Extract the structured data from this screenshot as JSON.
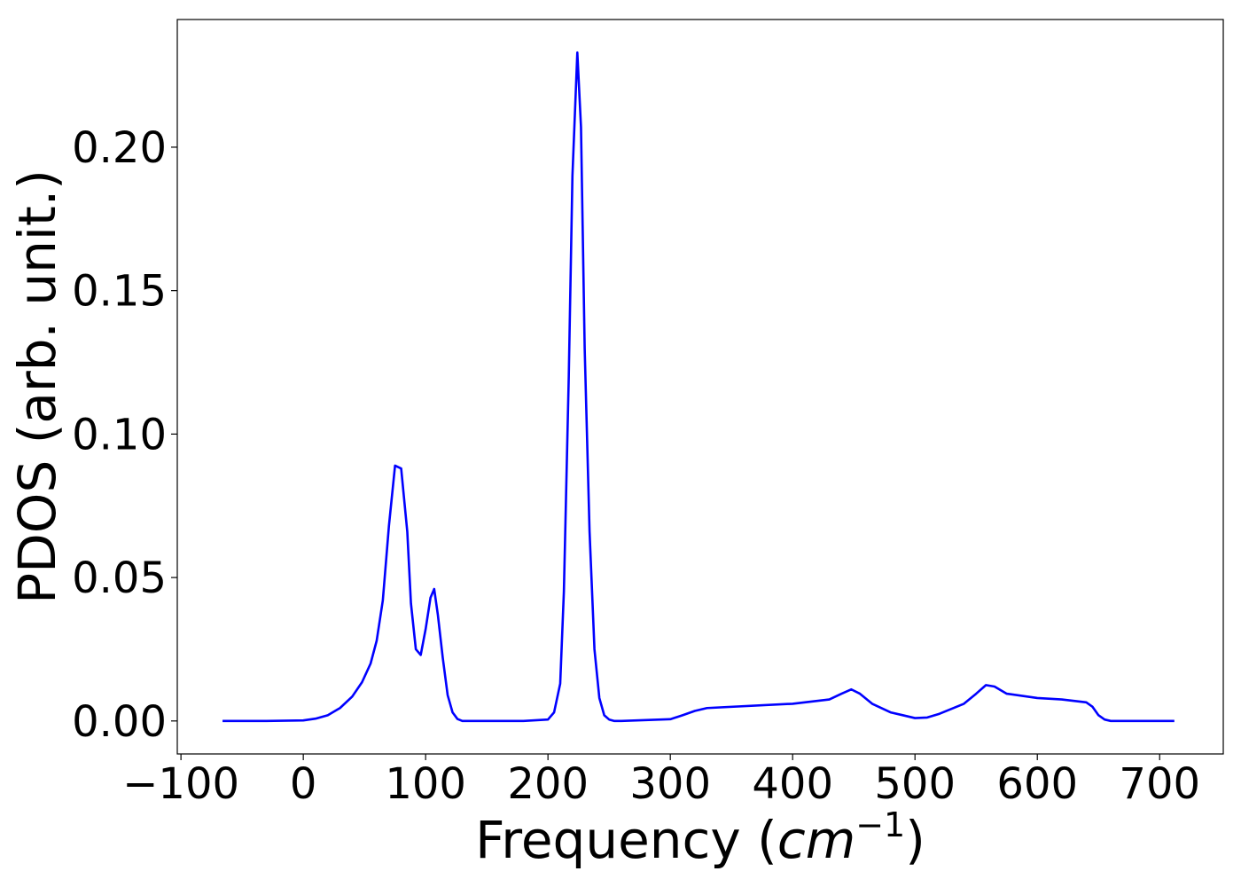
{
  "chart_data": {
    "type": "line",
    "title": "",
    "xlabel": {
      "main": "Frequency (",
      "unit_base": "cm",
      "unit_exponent": "−1",
      "close": ")"
    },
    "ylabel": "PDOS (arb. unit.)",
    "xlim": [
      -103,
      752
    ],
    "ylim": [
      -0.0115,
      0.2445
    ],
    "xticks": [
      -100,
      0,
      100,
      200,
      300,
      400,
      500,
      600,
      700
    ],
    "xtick_labels": [
      "−100",
      "0",
      "100",
      "200",
      "300",
      "400",
      "500",
      "600",
      "700"
    ],
    "yticks": [
      0.0,
      0.05,
      0.1,
      0.15,
      0.2
    ],
    "ytick_labels": [
      "0.00",
      "0.05",
      "0.10",
      "0.15",
      "0.20"
    ],
    "grid": false,
    "line_color": "#0000ff",
    "series": [
      {
        "x": [
          -66,
          -30,
          0,
          10,
          20,
          30,
          40,
          48,
          55,
          60,
          65,
          70,
          75,
          80,
          85,
          88,
          92,
          96,
          100,
          104,
          107,
          110,
          114,
          118,
          122,
          126,
          130,
          150,
          180,
          200,
          205,
          210,
          213,
          217,
          220,
          224,
          227,
          230,
          234,
          238,
          242,
          246,
          250,
          254,
          260,
          300,
          310,
          320,
          330,
          400,
          430,
          440,
          448,
          455,
          465,
          480,
          500,
          510,
          520,
          540,
          550,
          558,
          565,
          575,
          600,
          620,
          640,
          645,
          650,
          655,
          660,
          700,
          712
        ],
        "y": [
          0.0,
          0.0,
          0.0002,
          0.0008,
          0.002,
          0.0045,
          0.0085,
          0.0135,
          0.02,
          0.028,
          0.042,
          0.068,
          0.089,
          0.088,
          0.066,
          0.041,
          0.025,
          0.023,
          0.032,
          0.043,
          0.046,
          0.037,
          0.022,
          0.009,
          0.003,
          0.0007,
          0.0,
          0.0,
          0.0,
          0.0005,
          0.003,
          0.013,
          0.045,
          0.12,
          0.19,
          0.233,
          0.207,
          0.13,
          0.066,
          0.025,
          0.008,
          0.002,
          0.0005,
          0.0,
          0.0,
          0.0006,
          0.002,
          0.0035,
          0.0045,
          0.006,
          0.0075,
          0.0095,
          0.011,
          0.0095,
          0.006,
          0.003,
          0.001,
          0.0012,
          0.0025,
          0.006,
          0.0095,
          0.0125,
          0.012,
          0.0095,
          0.008,
          0.0075,
          0.0065,
          0.005,
          0.002,
          0.0005,
          0.0,
          0.0,
          0.0
        ]
      }
    ]
  }
}
